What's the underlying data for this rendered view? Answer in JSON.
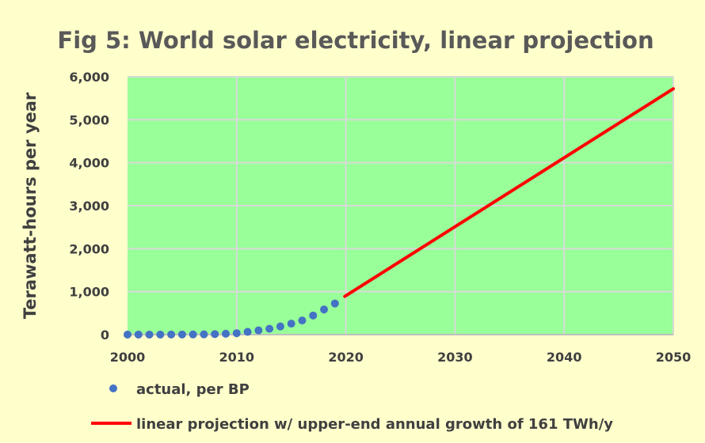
{
  "chart_data": {
    "type": "line",
    "title": "Fig 5: World solar electricity, linear projection",
    "xlabel": "",
    "ylabel": "Terawatt-hours per year",
    "xlim": [
      2000,
      2050
    ],
    "ylim": [
      0,
      6000
    ],
    "x_ticks": [
      "2000",
      "2010",
      "2020",
      "2030",
      "2040",
      "2050"
    ],
    "y_ticks": [
      "0",
      "1,000",
      "2,000",
      "3,000",
      "4,000",
      "5,000",
      "6,000"
    ],
    "grid": true,
    "legend_position": "bottom",
    "plot_background": "#99FF99",
    "page_background": "#FFFFCC",
    "series": [
      {
        "name": "actual, per BP",
        "style": "scatter",
        "color": "#4472C4",
        "x": [
          2000,
          2001,
          2002,
          2003,
          2004,
          2005,
          2006,
          2007,
          2008,
          2009,
          2010,
          2011,
          2012,
          2013,
          2014,
          2015,
          2016,
          2017,
          2018,
          2019
        ],
        "y": [
          1,
          1,
          1,
          1,
          2,
          3,
          4,
          6,
          12,
          20,
          33,
          64,
          99,
          136,
          190,
          255,
          329,
          445,
          585,
          724
        ]
      },
      {
        "name": "linear projection w/ upper-end annual growth of 161 TWh/y",
        "style": "line",
        "color": "#FF0000",
        "x": [
          2019.9,
          2050
        ],
        "y": [
          890,
          5720
        ]
      }
    ]
  }
}
